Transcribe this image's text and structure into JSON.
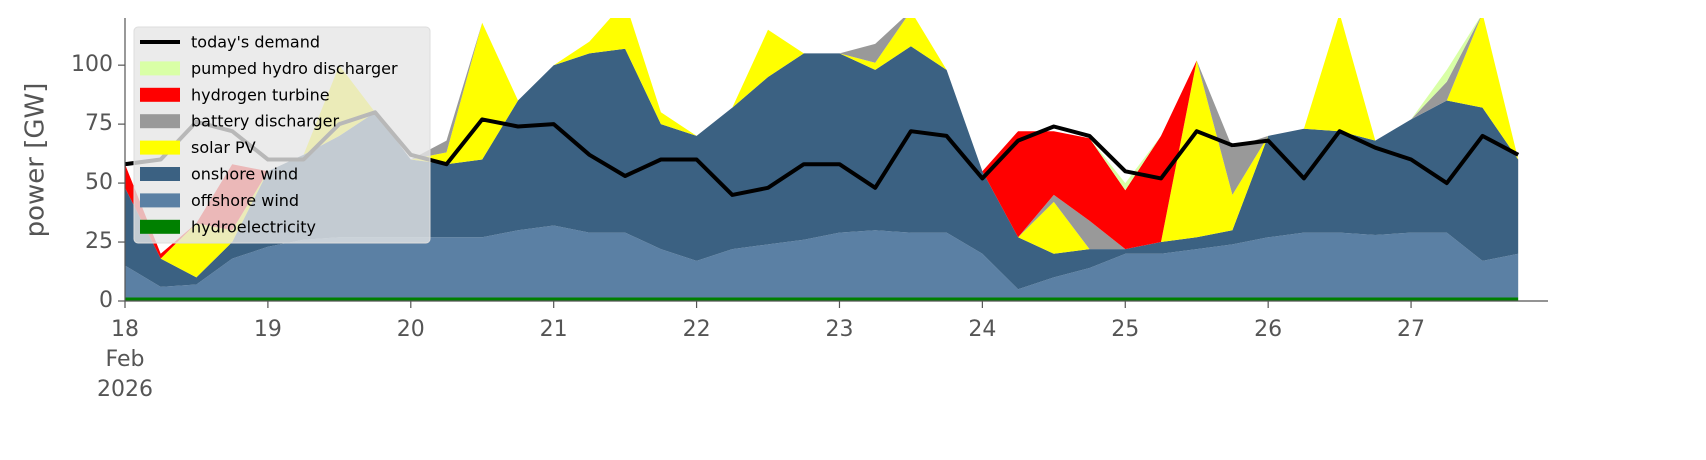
{
  "chart_data": {
    "type": "area",
    "ylabel": "power [GW]",
    "x": [
      "2026-02-18T00:00",
      "2026-02-18T06:00",
      "2026-02-18T12:00",
      "2026-02-18T18:00",
      "2026-02-19T00:00",
      "2026-02-19T06:00",
      "2026-02-19T12:00",
      "2026-02-19T18:00",
      "2026-02-20T00:00",
      "2026-02-20T06:00",
      "2026-02-20T12:00",
      "2026-02-20T18:00",
      "2026-02-21T00:00",
      "2026-02-21T06:00",
      "2026-02-21T12:00",
      "2026-02-21T18:00",
      "2026-02-22T00:00",
      "2026-02-22T06:00",
      "2026-02-22T12:00",
      "2026-02-22T18:00",
      "2026-02-23T00:00",
      "2026-02-23T06:00",
      "2026-02-23T12:00",
      "2026-02-23T18:00",
      "2026-02-24T00:00",
      "2026-02-24T06:00",
      "2026-02-24T12:00",
      "2026-02-24T18:00",
      "2026-02-25T00:00",
      "2026-02-25T06:00",
      "2026-02-25T12:00",
      "2026-02-25T18:00",
      "2026-02-26T00:00",
      "2026-02-26T06:00",
      "2026-02-26T12:00",
      "2026-02-26T18:00",
      "2026-02-27T00:00",
      "2026-02-27T06:00",
      "2026-02-27T12:00",
      "2026-02-27T18:00"
    ],
    "series": [
      {
        "name": "today's demand",
        "kind": "line",
        "color": "#000000",
        "values": [
          58,
          60,
          76,
          72,
          60,
          60,
          75,
          80,
          62,
          58,
          77,
          74,
          75,
          62,
          53,
          60,
          60,
          45,
          48,
          58,
          58,
          48,
          72,
          70,
          52,
          68,
          74,
          70,
          55,
          52,
          72,
          66,
          68,
          52,
          72,
          65,
          60,
          50,
          70,
          62
        ]
      },
      {
        "name": "pumped hydro discharger",
        "kind": "stack",
        "color": "#d9ffa6",
        "values": [
          0,
          0,
          0,
          0,
          0,
          0,
          0,
          0,
          0,
          0,
          0,
          0,
          0,
          0,
          0,
          0,
          0,
          0,
          0,
          0,
          0,
          0,
          0,
          0,
          0,
          0,
          0,
          0,
          3,
          0,
          0,
          0,
          0,
          0,
          0,
          0,
          0,
          5,
          0,
          0
        ]
      },
      {
        "name": "hydrogen turbine",
        "kind": "stack",
        "color": "#ff0000",
        "values": [
          10,
          2,
          0,
          28,
          0,
          0,
          0,
          0,
          0,
          0,
          0,
          0,
          0,
          0,
          0,
          0,
          0,
          0,
          0,
          0,
          0,
          0,
          0,
          0,
          0,
          45,
          27,
          35,
          25,
          45,
          0,
          0,
          0,
          0,
          0,
          0,
          0,
          0,
          0,
          0
        ]
      },
      {
        "name": "battery discharger",
        "kind": "stack",
        "color": "#999999",
        "values": [
          0,
          0,
          0,
          0,
          0,
          0,
          0,
          0,
          0,
          5,
          0,
          0,
          0,
          0,
          0,
          0,
          0,
          0,
          0,
          0,
          0,
          8,
          0,
          0,
          0,
          0,
          3,
          12,
          0,
          0,
          0,
          20,
          0,
          0,
          0,
          0,
          0,
          8,
          0,
          0
        ]
      },
      {
        "name": "solar PV",
        "kind": "stack",
        "color": "#ffff00",
        "values": [
          0,
          0,
          23,
          5,
          0,
          0,
          30,
          0,
          0,
          5,
          58,
          0,
          0,
          5,
          20,
          5,
          0,
          0,
          20,
          0,
          0,
          3,
          15,
          0,
          0,
          0,
          22,
          0,
          0,
          0,
          75,
          15,
          0,
          0,
          50,
          0,
          0,
          0,
          40,
          0
        ]
      },
      {
        "name": "onshore wind",
        "kind": "stack",
        "color": "#3b6182",
        "values": [
          33,
          12,
          3,
          7,
          32,
          36,
          43,
          53,
          33,
          31,
          33,
          55,
          68,
          76,
          78,
          53,
          53,
          60,
          71,
          79,
          76,
          68,
          79,
          69,
          35,
          22,
          10,
          8,
          2,
          5,
          5,
          6,
          43,
          44,
          43,
          40,
          48,
          56,
          65,
          40
        ]
      },
      {
        "name": "offshore wind",
        "kind": "stack",
        "color": "#5b80a4",
        "values": [
          13.5,
          4.5,
          5.5,
          16.5,
          21.5,
          24.5,
          25.5,
          25.5,
          25.5,
          25.5,
          25.5,
          28.5,
          30.5,
          27.5,
          27.5,
          20.5,
          15.5,
          20.5,
          22.5,
          24.5,
          27.5,
          28.5,
          27.5,
          27.5,
          18.5,
          3.5,
          8.5,
          12.5,
          18.5,
          18.5,
          20.5,
          22.5,
          25.5,
          27.5,
          27.5,
          26.5,
          27.5,
          27.5,
          15.5,
          18.5
        ]
      },
      {
        "name": "hydroelectricity",
        "kind": "stack",
        "color": "#008000",
        "values": [
          1.5,
          1.5,
          1.5,
          1.5,
          1.5,
          1.5,
          1.5,
          1.5,
          1.5,
          1.5,
          1.5,
          1.5,
          1.5,
          1.5,
          1.5,
          1.5,
          1.5,
          1.5,
          1.5,
          1.5,
          1.5,
          1.5,
          1.5,
          1.5,
          1.5,
          1.5,
          1.5,
          1.5,
          1.5,
          1.5,
          1.5,
          1.5,
          1.5,
          1.5,
          1.5,
          1.5,
          1.5,
          1.5,
          1.5,
          1.5
        ]
      }
    ],
    "xlim": [
      "2026-02-18T00:00",
      "2026-02-27T23:00"
    ],
    "xticks": [
      {
        "value": "2026-02-18T00:00",
        "label": "18"
      },
      {
        "value": "2026-02-19T00:00",
        "label": "19"
      },
      {
        "value": "2026-02-20T00:00",
        "label": "20"
      },
      {
        "value": "2026-02-21T00:00",
        "label": "21"
      },
      {
        "value": "2026-02-22T00:00",
        "label": "22"
      },
      {
        "value": "2026-02-23T00:00",
        "label": "23"
      },
      {
        "value": "2026-02-24T00:00",
        "label": "24"
      },
      {
        "value": "2026-02-25T00:00",
        "label": "25"
      },
      {
        "value": "2026-02-26T00:00",
        "label": "26"
      },
      {
        "value": "2026-02-27T00:00",
        "label": "27"
      }
    ],
    "xtick_month": "Feb",
    "xtick_year": "2026",
    "ylim": [
      0,
      120
    ],
    "yticks": [
      0,
      25,
      50,
      75,
      100
    ],
    "legend": "upper left"
  }
}
